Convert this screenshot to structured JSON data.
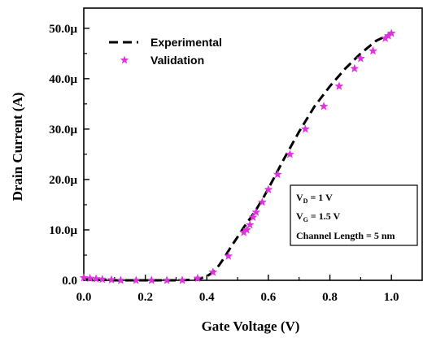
{
  "chart_data": {
    "type": "line",
    "xlabel": "Gate Voltage (V)",
    "ylabel": "Drain Current (A)",
    "xlim": [
      0,
      1.1
    ],
    "ylim": [
      0,
      5.4e-05
    ],
    "x_ticks": [
      {
        "value": 0.0,
        "label": "0.0"
      },
      {
        "value": 0.2,
        "label": "0.2"
      },
      {
        "value": 0.4,
        "label": "0.4"
      },
      {
        "value": 0.6,
        "label": "0.6"
      },
      {
        "value": 0.8,
        "label": "0.8"
      },
      {
        "value": 1.0,
        "label": "1.0"
      }
    ],
    "y_ticks": [
      {
        "value": 0.0,
        "label": "0.0"
      },
      {
        "value": 1e-05,
        "label": "10.0μ"
      },
      {
        "value": 2e-05,
        "label": "20.0μ"
      },
      {
        "value": 3e-05,
        "label": "30.0μ"
      },
      {
        "value": 4e-05,
        "label": "40.0μ"
      },
      {
        "value": 5e-05,
        "label": "50.0μ"
      }
    ],
    "grid": false,
    "legend_position": "top-left",
    "series": [
      {
        "name": "Experimental",
        "style": "dashed-line",
        "color": "#000000",
        "x": [
          0.0,
          0.05,
          0.1,
          0.15,
          0.2,
          0.25,
          0.3,
          0.35,
          0.38,
          0.4,
          0.42,
          0.44,
          0.46,
          0.48,
          0.5,
          0.52,
          0.54,
          0.56,
          0.58,
          0.6,
          0.65,
          0.7,
          0.75,
          0.8,
          0.85,
          0.9,
          0.95,
          1.0
        ],
        "y": [
          2e-07,
          1e-07,
          0.0,
          0.0,
          0.0,
          0.0,
          0.0,
          1e-07,
          4e-07,
          8e-07,
          1.6e-06,
          3e-06,
          4.8e-06,
          6.8e-06,
          8.6e-06,
          1.05e-05,
          1.22e-05,
          1.4e-05,
          1.6e-05,
          1.82e-05,
          2.4e-05,
          2.95e-05,
          3.45e-05,
          3.85e-05,
          4.2e-05,
          4.5e-05,
          4.75e-05,
          4.9e-05
        ]
      },
      {
        "name": "Validation",
        "style": "star-markers",
        "color": "#dd33dd",
        "x": [
          0.0,
          0.02,
          0.04,
          0.06,
          0.09,
          0.12,
          0.17,
          0.22,
          0.27,
          0.32,
          0.37,
          0.42,
          0.47,
          0.52,
          0.53,
          0.54,
          0.55,
          0.56,
          0.58,
          0.6,
          0.63,
          0.67,
          0.72,
          0.78,
          0.83,
          0.88,
          0.9,
          0.94,
          0.98,
          0.99,
          1.0
        ],
        "y": [
          5e-07,
          4e-07,
          3e-07,
          2e-07,
          1e-07,
          0.0,
          0.0,
          0.0,
          0.0,
          0.0,
          4e-07,
          1.6e-06,
          4.8e-06,
          9.5e-06,
          1e-05,
          1.1e-05,
          1.25e-05,
          1.35e-05,
          1.55e-05,
          1.8e-05,
          2.1e-05,
          2.5e-05,
          3e-05,
          3.45e-05,
          3.85e-05,
          4.2e-05,
          4.4e-05,
          4.55e-05,
          4.8e-05,
          4.85e-05,
          4.9e-05
        ]
      }
    ],
    "annotation": {
      "lines": [
        {
          "main": "V",
          "sub": "D",
          "rest": " = 1 V"
        },
        {
          "main": "V",
          "sub": "G",
          "rest": " = 1.5 V"
        },
        {
          "main": "Channel Length = 5 nm",
          "sub": "",
          "rest": ""
        }
      ]
    }
  }
}
